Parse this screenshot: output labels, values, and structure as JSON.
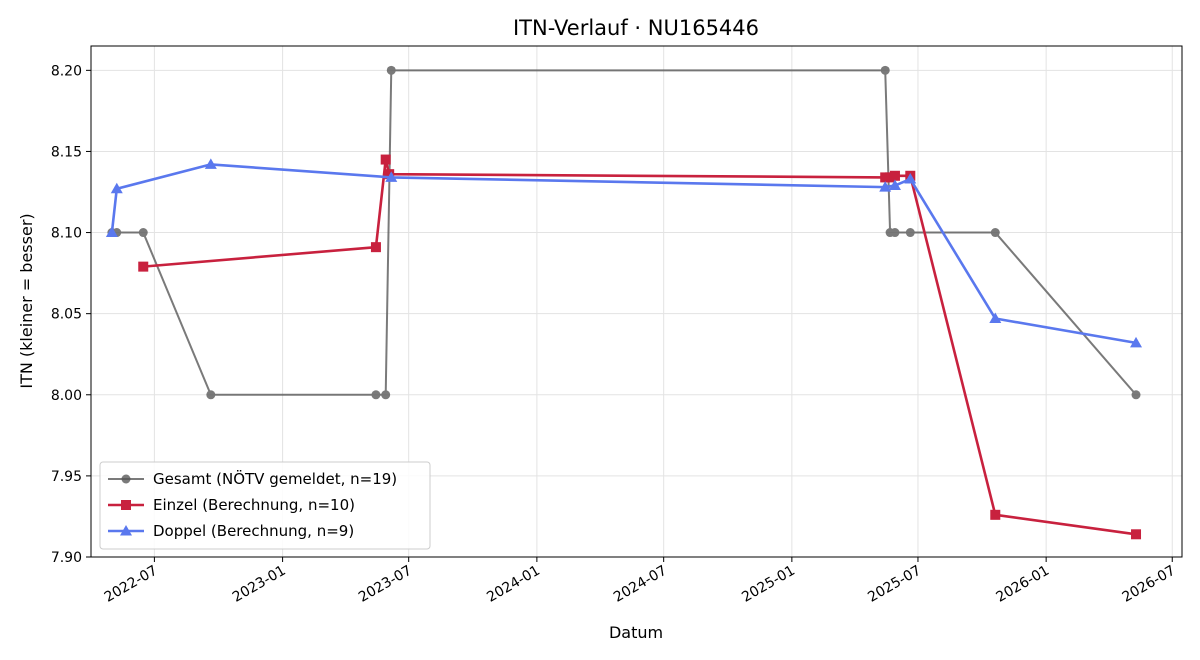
{
  "chart_data": {
    "type": "line",
    "title": "ITN-Verlauf · NU165446",
    "xlabel": "Datum",
    "ylabel": "ITN  (kleiner = besser)",
    "x_type": "date",
    "xlim": [
      "2022-04-01",
      "2026-07-15"
    ],
    "ylim": [
      7.9,
      8.215
    ],
    "grid": true,
    "legend_position": "lower-left",
    "x_ticks": [
      "2022-07",
      "2023-01",
      "2023-07",
      "2024-01",
      "2024-07",
      "2025-01",
      "2025-07",
      "2026-01",
      "2026-07"
    ],
    "y_ticks": [
      "7.90",
      "7.95",
      "8.00",
      "8.05",
      "8.10",
      "8.15",
      "8.20"
    ],
    "series": [
      {
        "name": "Gesamt (NÖTV gemeldet, n=19)",
        "color": "#555555",
        "marker": "circle",
        "points": [
          {
            "x": "2022-05-01",
            "y": 8.1
          },
          {
            "x": "2022-05-08",
            "y": 8.1
          },
          {
            "x": "2022-06-15",
            "y": 8.1
          },
          {
            "x": "2022-09-20",
            "y": 8.0
          },
          {
            "x": "2023-05-15",
            "y": 8.0
          },
          {
            "x": "2023-05-29",
            "y": 8.0
          },
          {
            "x": "2023-06-06",
            "y": 8.2
          },
          {
            "x": "2025-05-15",
            "y": 8.2
          },
          {
            "x": "2025-05-22",
            "y": 8.1
          },
          {
            "x": "2025-05-29",
            "y": 8.1
          },
          {
            "x": "2025-06-20",
            "y": 8.1
          },
          {
            "x": "2025-10-20",
            "y": 8.1
          },
          {
            "x": "2026-05-10",
            "y": 8.0
          }
        ]
      },
      {
        "name": "Einzel (Berechnung, n=10)",
        "color": "#c8213e",
        "marker": "square",
        "points": [
          {
            "x": "2022-06-15",
            "y": 8.079
          },
          {
            "x": "2023-05-15",
            "y": 8.091
          },
          {
            "x": "2023-05-29",
            "y": 8.145
          },
          {
            "x": "2023-06-03",
            "y": 8.136
          },
          {
            "x": "2025-05-15",
            "y": 8.134
          },
          {
            "x": "2025-05-22",
            "y": 8.134
          },
          {
            "x": "2025-05-29",
            "y": 8.135
          },
          {
            "x": "2025-06-20",
            "y": 8.135
          },
          {
            "x": "2025-10-20",
            "y": 7.926
          },
          {
            "x": "2026-05-10",
            "y": 7.914
          }
        ]
      },
      {
        "name": "Doppel (Berechnung, n=9)",
        "color": "#5a78ee",
        "marker": "triangle",
        "points": [
          {
            "x": "2022-05-01",
            "y": 8.1
          },
          {
            "x": "2022-05-08",
            "y": 8.127
          },
          {
            "x": "2022-09-20",
            "y": 8.142
          },
          {
            "x": "2023-06-06",
            "y": 8.134
          },
          {
            "x": "2025-05-15",
            "y": 8.128
          },
          {
            "x": "2025-05-29",
            "y": 8.129
          },
          {
            "x": "2025-06-20",
            "y": 8.133
          },
          {
            "x": "2025-10-20",
            "y": 8.047
          },
          {
            "x": "2026-05-10",
            "y": 8.032
          }
        ]
      }
    ]
  }
}
